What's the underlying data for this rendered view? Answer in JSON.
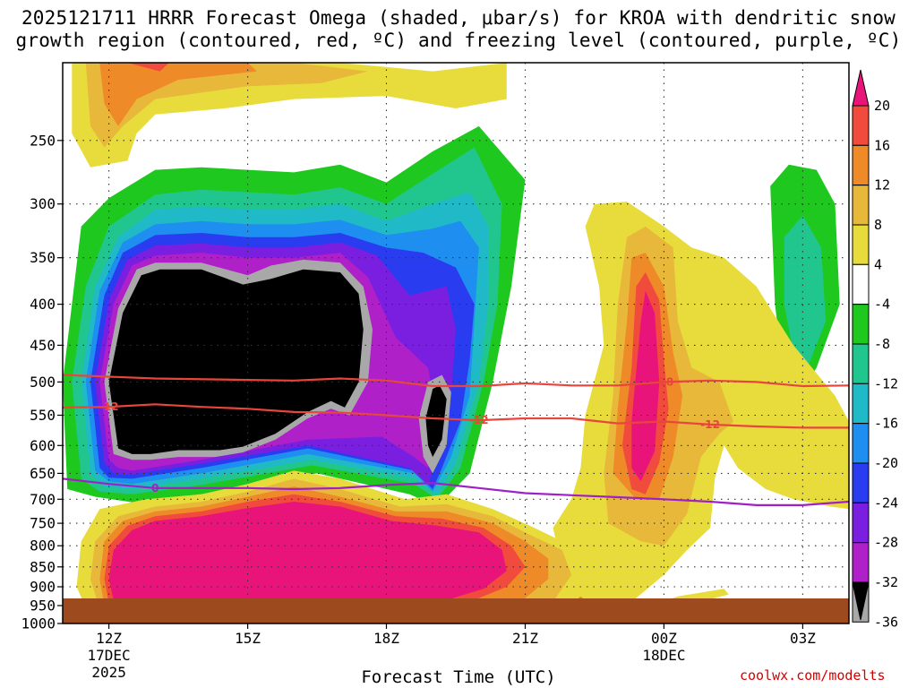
{
  "chart_data": {
    "type": "heatmap",
    "title_line1": "2025121711 HRRR Forecast Omega (shaded, μbar/s) for KROA with dendritic snow",
    "title_line2": "growth region (contoured, red, ºC) and freezing level (contoured, purple, ºC)",
    "xlabel": "Forecast Time (UTC)",
    "ylabel": "",
    "y_axis": {
      "ticks": [
        250,
        300,
        350,
        400,
        450,
        500,
        550,
        600,
        650,
        700,
        750,
        800,
        850,
        900,
        950,
        1000
      ],
      "labels": [
        "250",
        "300",
        "350",
        "400",
        "450",
        "500",
        "550",
        "600",
        "650",
        "700",
        "750",
        "800",
        "850",
        "900",
        "950",
        "1000"
      ],
      "range": [
        200,
        1000
      ],
      "scale": "log"
    },
    "x_axis": {
      "range_hours": [
        11,
        28
      ],
      "ticks": [
        {
          "hour": 12,
          "label": "12Z",
          "sub1": "17DEC",
          "sub2": "2025"
        },
        {
          "hour": 15,
          "label": "15Z",
          "sub1": "",
          "sub2": ""
        },
        {
          "hour": 18,
          "label": "18Z",
          "sub1": "",
          "sub2": ""
        },
        {
          "hour": 21,
          "label": "21Z",
          "sub1": "",
          "sub2": ""
        },
        {
          "hour": 24,
          "label": "00Z",
          "sub1": "18DEC",
          "sub2": ""
        },
        {
          "hour": 27,
          "label": "03Z",
          "sub1": "",
          "sub2": ""
        }
      ]
    },
    "colorbar": {
      "labels": [
        "20",
        "16",
        "12",
        "8",
        "4",
        "-4",
        "-8",
        "-12",
        "-16",
        "-20",
        "-24",
        "-28",
        "-32",
        "-36"
      ],
      "colors": [
        "#e8147a",
        "#f04b3c",
        "#ef8a28",
        "#e8b83a",
        "#e8dc3c",
        "#ffffff",
        "#1fc81f",
        "#20c68e",
        "#1fb9c8",
        "#1e8ef0",
        "#2a3cf0",
        "#7a1fe0",
        "#b020c8",
        "#a8a8a8",
        "#000000"
      ]
    },
    "grid": true,
    "ground_color": "#9c4a1e",
    "omega_field_colors": {
      "black": "#000000",
      "gray": "#a8a8a8",
      "violet": "#b020c8",
      "purple": "#7a1fe0",
      "blue": "#2a3cf0",
      "lightblue": "#1e8ef0",
      "cyan": "#1fb9c8",
      "teal": "#20c68e",
      "green": "#1fc81f",
      "yellow": "#e8dc3c",
      "gold": "#e8b83a",
      "orange": "#ef8a28",
      "red": "#f04b3c",
      "magenta": "#e8147a"
    },
    "contours": {
      "dgz_color": "#e8463c",
      "freezing_color": "#a020c8",
      "dgz_minus18": {
        "label": "-18",
        "x": [
          11,
          13,
          15,
          16,
          17,
          18,
          19,
          20,
          21,
          22,
          23,
          24,
          25,
          26,
          27,
          28
        ],
        "y": [
          490,
          495,
          497,
          498,
          495,
          498,
          506,
          506,
          502,
          505,
          505,
          500,
          498,
          500,
          506,
          505
        ]
      },
      "dgz_minus12": {
        "label": "-12",
        "x": [
          11,
          12,
          13,
          14,
          15,
          16,
          17,
          18,
          19,
          20,
          21,
          22,
          23,
          24,
          25,
          26,
          27,
          28
        ],
        "y": [
          538,
          537,
          533,
          537,
          540,
          545,
          546,
          550,
          555,
          558,
          555,
          555,
          563,
          560,
          565,
          568,
          570,
          570
        ]
      },
      "freezing_0": {
        "label": "0",
        "x": [
          11,
          12,
          13,
          14,
          15,
          16,
          17,
          18,
          19,
          20,
          21,
          22,
          23,
          24,
          25,
          26,
          27,
          28
        ],
        "y": [
          660,
          670,
          678,
          678,
          678,
          680,
          678,
          672,
          668,
          678,
          688,
          692,
          696,
          700,
          705,
          712,
          712,
          705
        ]
      }
    }
  },
  "credit": "coolwx.com/modelts"
}
